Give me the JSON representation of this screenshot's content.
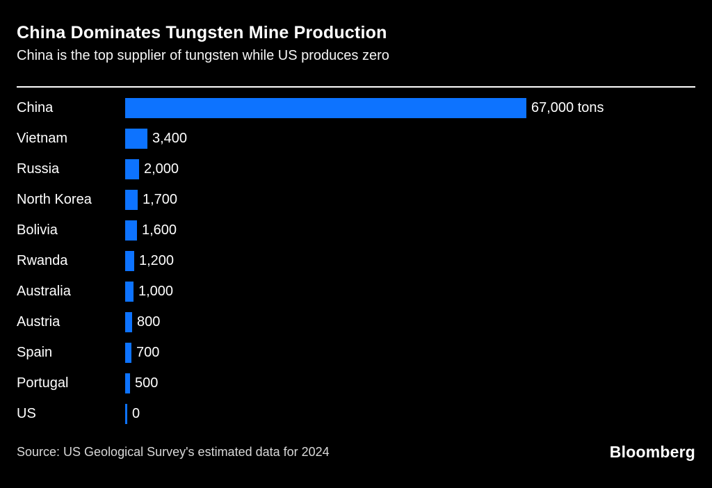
{
  "chart_data": {
    "type": "bar",
    "orientation": "horizontal",
    "title": "China Dominates Tungsten Mine Production",
    "subtitle": "China is the top supplier of tungsten while US produces zero",
    "categories": [
      "China",
      "Vietnam",
      "Russia",
      "North Korea",
      "Bolivia",
      "Rwanda",
      "Australia",
      "Austria",
      "Spain",
      "Portugal",
      "US"
    ],
    "values": [
      67000,
      3400,
      2000,
      1700,
      1600,
      1200,
      1000,
      800,
      700,
      500,
      0
    ],
    "value_labels": [
      "67,000 tons",
      "3,400",
      "2,000",
      "1,700",
      "1,600",
      "1,200",
      "1,000",
      "800",
      "700",
      "500",
      "0"
    ],
    "unit": "tons",
    "xlim": [
      0,
      67000
    ],
    "grid": false,
    "legend": "none",
    "bar_color": "#0d73ff"
  },
  "footer": {
    "source": "Source: US Geological Survey's estimated data for 2024",
    "logo": "Bloomberg"
  },
  "colors": {
    "background": "#000000",
    "title_text": "#ffffff",
    "label_text": "#ffffff",
    "source_text": "#d9d9d9",
    "rule": "#ffffff",
    "bar": "#0d73ff"
  }
}
